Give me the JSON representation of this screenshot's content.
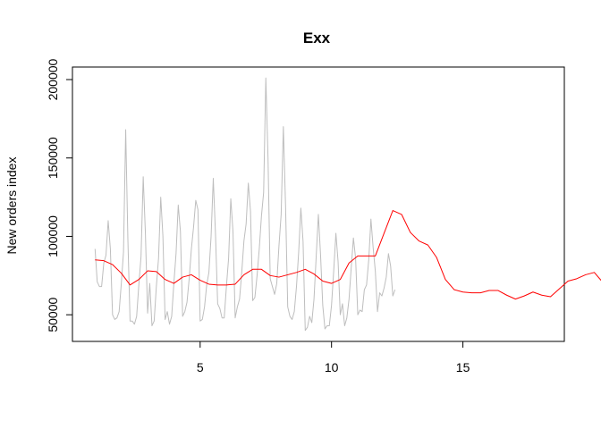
{
  "chart_data": {
    "type": "line",
    "title": "Exx",
    "xlabel": "",
    "ylabel": "New orders index",
    "xlim": [
      0.14,
      18.86
    ],
    "ylim": [
      33000,
      208000
    ],
    "x_ticks": [
      5,
      10,
      15
    ],
    "y_ticks": [
      50000,
      100000,
      150000,
      200000
    ],
    "grid": false,
    "legend": "none",
    "series": [
      {
        "color": "#bebebe",
        "x_start": 1,
        "x_step": 0.08333,
        "values": [
          92000,
          71000,
          68000,
          68000,
          83000,
          88000,
          110000,
          92000,
          50000,
          47000,
          48000,
          52000,
          70000,
          90000,
          168000,
          98000,
          46000,
          46000,
          44000,
          49000,
          69000,
          87000,
          138000,
          102000,
          51000,
          70000,
          43000,
          46000,
          68000,
          86000,
          125000,
          100000,
          47000,
          52000,
          44000,
          49000,
          70000,
          89000,
          120000,
          103000,
          49000,
          52000,
          58000,
          73000,
          92000,
          106000,
          123000,
          117000,
          46000,
          47000,
          55000,
          69000,
          77000,
          100000,
          137000,
          102000,
          57000,
          54000,
          48000,
          48000,
          68000,
          86000,
          124000,
          103000,
          48000,
          55000,
          60000,
          77000,
          97000,
          108000,
          134000,
          116000,
          59000,
          61000,
          75000,
          92000,
          113000,
          128000,
          201000,
          150000,
          73000,
          68000,
          63000,
          70000,
          94000,
          114000,
          170000,
          120000,
          55000,
          49000,
          47000,
          52000,
          68000,
          90000,
          118000,
          97000,
          40000,
          42000,
          49000,
          45000,
          60000,
          87000,
          114000,
          88000,
          56000,
          41000,
          43000,
          43000,
          56000,
          78000,
          102000,
          84000,
          50000,
          57000,
          43000,
          48000,
          60000,
          80000,
          99000,
          86000,
          50000,
          53000,
          52000,
          66000,
          69000,
          85000,
          111000,
          93000,
          78000,
          52000,
          64000,
          62000,
          67000,
          74000,
          89000,
          81000,
          62000,
          66000
        ]
      },
      {
        "color": "#ff0000",
        "x_start": 1,
        "x_step": 0.33333,
        "values": [
          85000,
          84500,
          82000,
          76500,
          69000,
          72500,
          78000,
          77500,
          72500,
          70000,
          74000,
          75500,
          72000,
          69500,
          69000,
          69000,
          69500,
          75500,
          79000,
          79000,
          75000,
          74000,
          75500,
          77000,
          79000,
          76000,
          71500,
          70000,
          72500,
          83000,
          87500,
          87500,
          87500,
          102000,
          116500,
          114000,
          102500,
          97000,
          94500,
          86500,
          72500,
          66000,
          64500,
          64000,
          64000,
          65500,
          65500,
          62500,
          60000,
          62000,
          64500,
          62500,
          61500,
          66500,
          71500,
          73000,
          75500,
          77000,
          70500,
          70000,
          70000,
          71000
        ]
      }
    ]
  }
}
